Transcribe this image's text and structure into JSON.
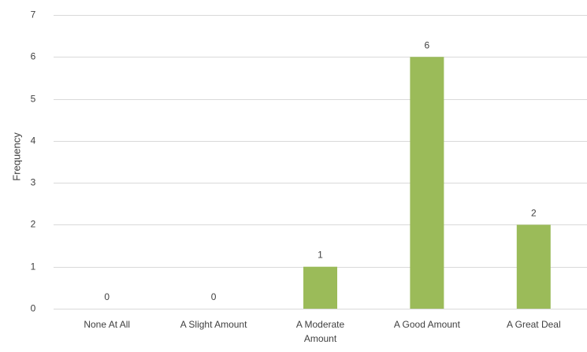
{
  "chart_data": {
    "type": "bar",
    "title": "",
    "xlabel": "",
    "ylabel": "Frequency",
    "categories": [
      [
        "None At All"
      ],
      [
        "A Slight Amount"
      ],
      [
        "A Moderate",
        "Amount"
      ],
      [
        "A Good Amount"
      ],
      [
        "A Great Deal"
      ]
    ],
    "values": [
      0,
      0,
      1,
      6,
      2
    ],
    "data_labels": [
      "0",
      "0",
      "1",
      "6",
      "2"
    ],
    "ylim": [
      0,
      7
    ],
    "yticks": [
      0,
      1,
      2,
      3,
      4,
      5,
      6,
      7
    ],
    "grid": true,
    "legend": "none",
    "bar_color": "#9bbb59",
    "grid_color": "#d9d9d9",
    "text_color": "#404040"
  }
}
